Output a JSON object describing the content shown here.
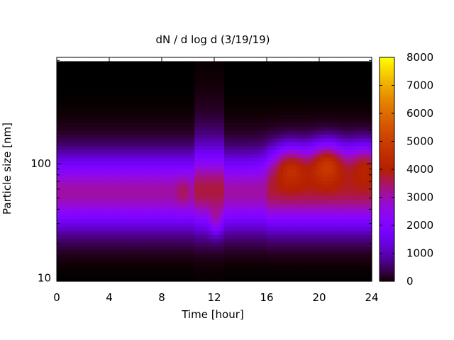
{
  "chart_data": {
    "type": "heatmap",
    "title": "dN / d log d (3/19/19)",
    "xlabel": "Time [hour]",
    "ylabel": "Particle size [nm]",
    "xlim": [
      0,
      24
    ],
    "ylim": [
      9.4,
      850
    ],
    "y_scale": "log",
    "x_ticks": [
      0,
      4,
      8,
      12,
      16,
      20,
      24
    ],
    "y_tick_labels": [
      10,
      100
    ],
    "colorbar": {
      "range": [
        0,
        8000
      ],
      "ticks": [
        0,
        1000,
        2000,
        3000,
        4000,
        5000,
        6000,
        7000,
        8000
      ],
      "palette": "gnuplot-pm3d-rainbow-black-purple-red-yellow"
    },
    "features": [
      {
        "time_hour": 9.6,
        "size_nm": 57,
        "value": 3500
      },
      {
        "time_hour": 12.1,
        "size_nm": 31,
        "value": 4000
      },
      {
        "time_hour": 17.8,
        "size_nm": 100,
        "value": 5200
      },
      {
        "time_hour": 20.6,
        "size_nm": 105,
        "value": 5800
      },
      {
        "time_hour": 23.5,
        "size_nm": 105,
        "value": 5000
      }
    ],
    "data_top_edge_nm_approx": 780
  }
}
